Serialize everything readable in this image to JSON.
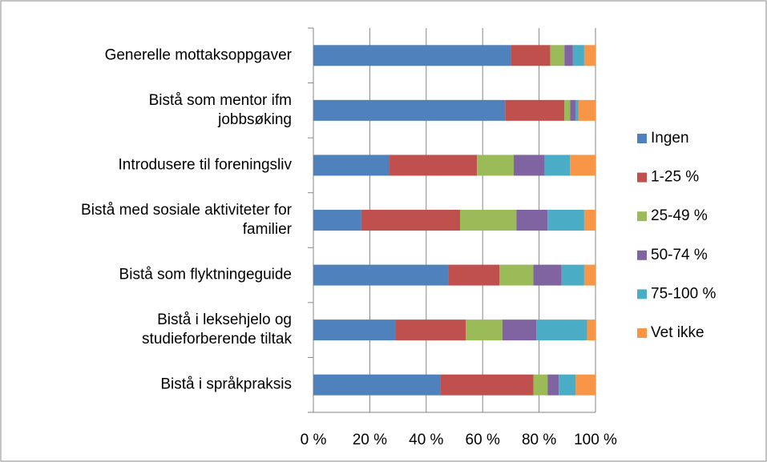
{
  "chart_data": {
    "type": "stacked_barh",
    "categories": [
      "Generelle mottaksoppgaver",
      "Bistå som mentor ifm\njobbsøking",
      "Introdusere til foreningsliv",
      "Bistå med sosiale aktiviteter for\nfamilier",
      "Bistå som flyktningeguide",
      "Bistå i leksehjelo og\nstudieforberende tiltak",
      "Bistå i språkpraksis"
    ],
    "series": [
      {
        "name": "Ingen",
        "color": "#4f81bd",
        "values": [
          70,
          68,
          27,
          17,
          48,
          29,
          45
        ]
      },
      {
        "name": "1-25 %",
        "color": "#c0504d",
        "values": [
          14,
          21,
          31,
          35,
          18,
          25,
          33
        ]
      },
      {
        "name": "25-49 %",
        "color": "#9bbb59",
        "values": [
          5,
          2,
          13,
          20,
          12,
          13,
          5
        ]
      },
      {
        "name": "50-74 %",
        "color": "#8064a2",
        "values": [
          3,
          2,
          11,
          11,
          10,
          12,
          4
        ]
      },
      {
        "name": "75-100 %",
        "color": "#4bacc6",
        "values": [
          4,
          1,
          9,
          13,
          8,
          18,
          6
        ]
      },
      {
        "name": "Vet ikke",
        "color": "#f79646",
        "values": [
          4,
          6,
          9,
          4,
          4,
          3,
          7
        ]
      }
    ],
    "xlim": [
      0,
      100
    ],
    "xticks": [
      {
        "value": 0,
        "label": "0 %"
      },
      {
        "value": 20,
        "label": "20 %"
      },
      {
        "value": 40,
        "label": "40 %"
      },
      {
        "value": 60,
        "label": "60 %"
      },
      {
        "value": 80,
        "label": "80 %"
      },
      {
        "value": 100,
        "label": "100 %"
      }
    ],
    "grid": true,
    "legend": "right"
  }
}
